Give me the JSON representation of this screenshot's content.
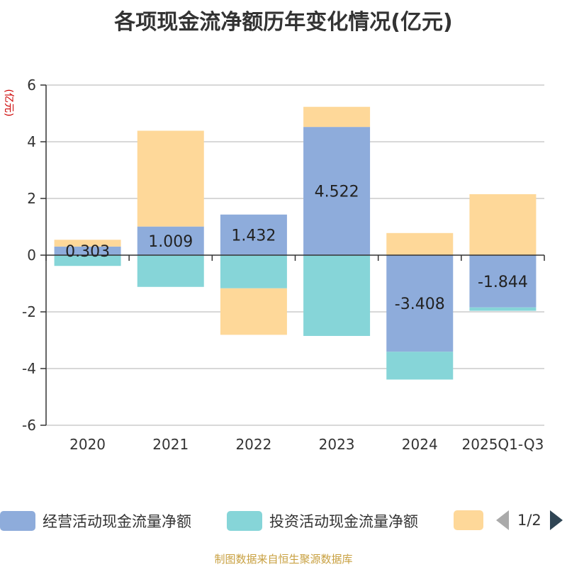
{
  "chart_data": {
    "type": "bar",
    "stacked": true,
    "title": "各项现金流净额历年变化情况(亿元)",
    "ylabel": "(亿元)",
    "xlabel": "",
    "ylim": [
      -6,
      6
    ],
    "yticks": [
      6,
      4,
      2,
      0,
      -2,
      -4,
      -6
    ],
    "categories": [
      "2020",
      "2021",
      "2022",
      "2023",
      "2024",
      "2025Q1-Q3"
    ],
    "series": [
      {
        "name": "经营活动现金流量净额",
        "color": "#8eacdb",
        "values": [
          0.303,
          1.009,
          1.432,
          4.522,
          -3.408,
          -1.844
        ]
      },
      {
        "name": "投资活动现金流量净额",
        "color": "#86d5d8",
        "values": [
          -0.38,
          -1.12,
          -1.17,
          -2.85,
          -0.98,
          -0.12
        ]
      },
      {
        "name": "",
        "color": "#fed899",
        "values": [
          0.24,
          3.38,
          -1.64,
          0.71,
          0.78,
          2.15
        ]
      }
    ],
    "data_labels": [
      "0.303",
      "1.009",
      "1.432",
      "4.522",
      "-3.408",
      "-1.844"
    ],
    "legend_position": "bottom"
  },
  "legend": {
    "page_text": "1/2"
  },
  "source": "制图数据来自恒生聚源数据库"
}
